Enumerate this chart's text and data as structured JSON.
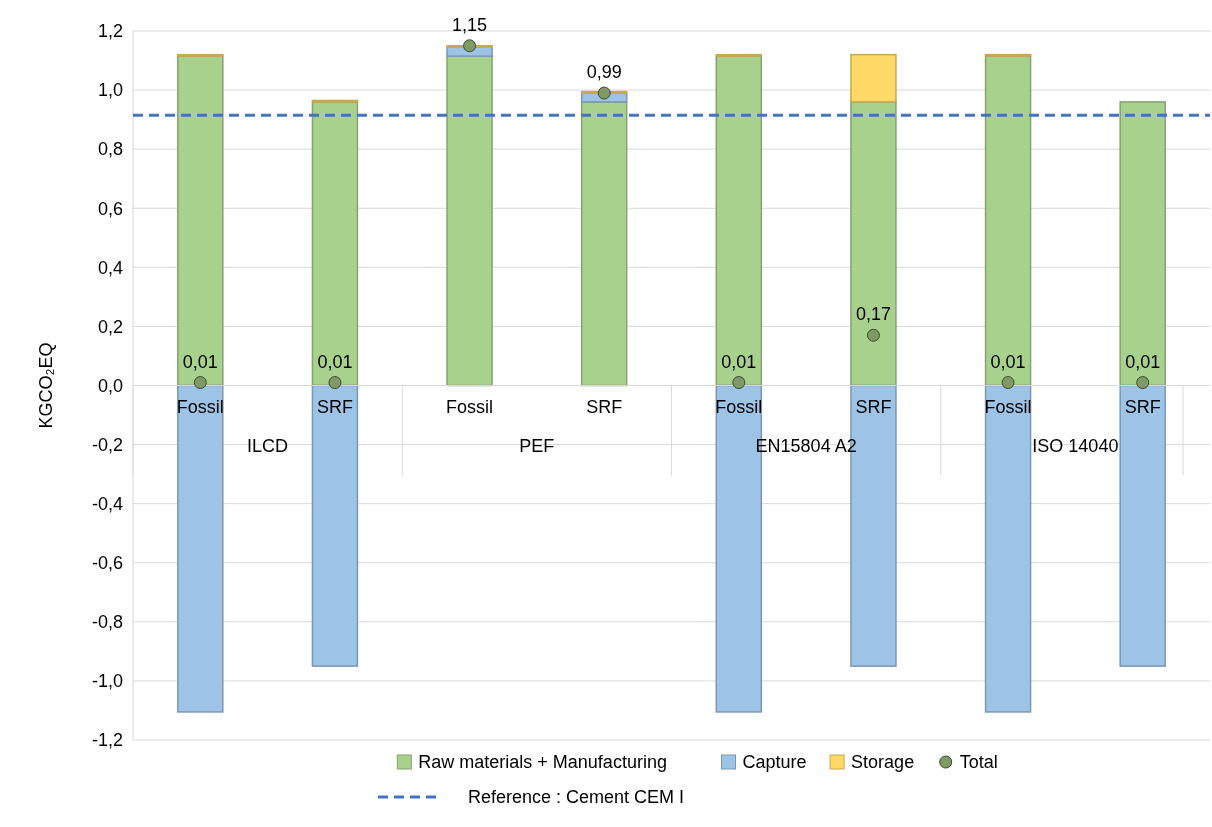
{
  "chart_data": {
    "type": "bar",
    "stacked": true,
    "ylabel": "KGCO₂EQ",
    "categories": [
      "Fossil",
      "SRF",
      "Fossil",
      "SRF",
      "Fossil",
      "SRF",
      "Fossil",
      "SRF"
    ],
    "annotations": [
      "ILCD",
      "PEF",
      "EN15804 A2",
      "ISO 14040"
    ],
    "series": [
      {
        "name": "Raw materials + Manufacturing",
        "color": "#a9d18e",
        "values": [
          1.115,
          0.96,
          1.115,
          0.96,
          1.115,
          0.96,
          1.115,
          0.96
        ]
      },
      {
        "name": "Capture",
        "color": "#9dc3e6",
        "values": [
          -1.105,
          -0.95,
          0.03,
          0.03,
          -1.105,
          -0.95,
          -1.105,
          -0.95
        ]
      },
      {
        "name": "Storage",
        "color": "#ffd966",
        "values": [
          0.005,
          0.005,
          0.005,
          0.005,
          0.005,
          0.16,
          0.005,
          null
        ]
      },
      {
        "name": "Total",
        "type": "scatter",
        "marker": "circle",
        "color": "#7f9a65",
        "values": [
          0.01,
          0.01,
          1.15,
          0.99,
          0.01,
          0.17,
          0.01,
          0.01
        ],
        "value_labels": [
          "0,01",
          "0,01",
          "1,15",
          "0,99",
          "0,01",
          "0,17",
          "0,01",
          "0,01"
        ]
      }
    ],
    "ylim": [
      -1.2,
      1.2
    ],
    "yticks": [
      {
        "value": -1.2,
        "label": "-1,2"
      },
      {
        "value": -1,
        "label": "-1,0"
      },
      {
        "value": -0.8,
        "label": "-0,8"
      },
      {
        "value": -0.6,
        "label": "-0,6"
      },
      {
        "value": -0.4,
        "label": "-0,4"
      },
      {
        "value": -0.2,
        "label": "-0,2"
      },
      {
        "value": 0,
        "label": "0,0"
      },
      {
        "value": 0.2,
        "label": "0,2"
      },
      {
        "value": 0.4,
        "label": "0,4"
      },
      {
        "value": 0.6,
        "label": "0,6"
      },
      {
        "value": 0.8,
        "label": "0,8"
      },
      {
        "value": 1,
        "label": "1,0"
      },
      {
        "value": 1.2,
        "label": "1,2"
      }
    ],
    "grid": "y",
    "legend": "bottom",
    "ref_lines": [
      {
        "axis": "y",
        "value": 0.915,
        "label": "Reference : Cement CEM I",
        "color": "#4472c4",
        "line_style": "dashed"
      }
    ]
  }
}
